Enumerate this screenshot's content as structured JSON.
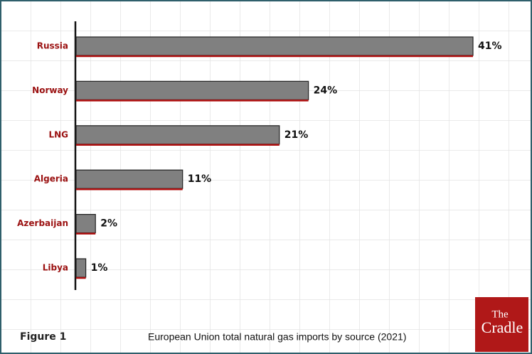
{
  "chart_data": {
    "type": "hbar",
    "categories": [
      "Russia",
      "Norway",
      "LNG",
      "Algeria",
      "Azerbaijan",
      "Libya"
    ],
    "values": [
      41,
      24,
      21,
      11,
      2,
      1
    ],
    "value_labels": [
      "41%",
      "24%",
      "21%",
      "11%",
      "2%",
      "1%"
    ],
    "color": "#808080",
    "figure_label": "Figure 1",
    "caption": "European Union total natural gas imports by source (2021)",
    "logo": [
      "The",
      "Cradle"
    ]
  }
}
